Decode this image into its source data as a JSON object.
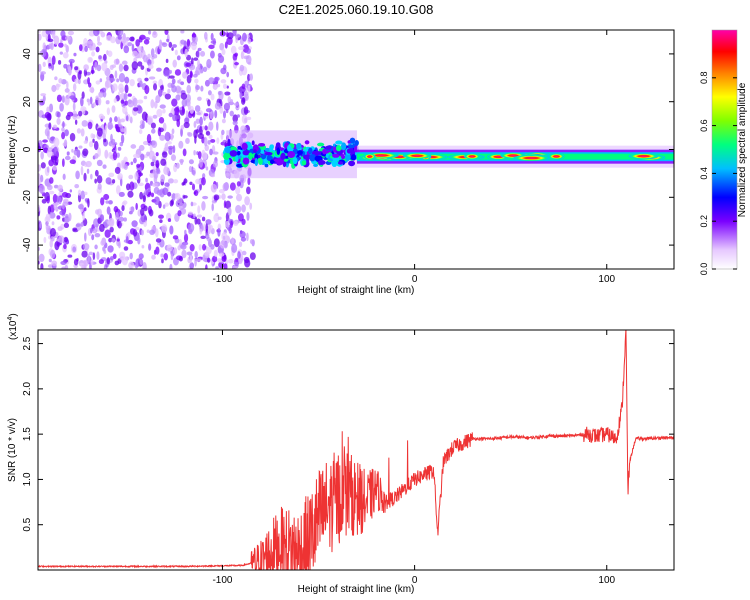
{
  "title": "C2E1.2025.060.19.10.G08",
  "chart_data": [
    {
      "type": "heatmap",
      "xlabel": "Height of straight line (km)",
      "ylabel": "Frequency (Hz)",
      "xlim": [
        -196,
        135
      ],
      "ylim": [
        -50,
        50
      ],
      "x_ticks": [
        -100,
        0,
        100
      ],
      "y_ticks": [
        -40,
        -20,
        0,
        20,
        40
      ],
      "colorbar": {
        "label": "Normalized spectral amplitude",
        "range": [
          0,
          1
        ],
        "ticks": [
          "0.0",
          "0.2",
          "0.4",
          "0.6",
          "0.8"
        ],
        "colormap": [
          "#ffffff",
          "#e6c8ff",
          "#7a00ff",
          "#0000ff",
          "#00bfff",
          "#00ff80",
          "#80ff00",
          "#ffff00",
          "#ff8000",
          "#ff0000",
          "#ff00aa"
        ]
      },
      "regions": [
        {
          "name": "noise",
          "x": [
            -196,
            -85
          ],
          "freq": [
            -50,
            50
          ],
          "amplitude": 0.15
        },
        {
          "name": "turbulent-onset",
          "x": [
            -98,
            -30
          ],
          "freq_center": -2,
          "freq_width": 10,
          "amplitude": 0.35
        },
        {
          "name": "stable-tone",
          "x": [
            -30,
            135
          ],
          "freq_center": -3,
          "freq_width": 5,
          "amplitude": 0.95
        }
      ]
    },
    {
      "type": "line",
      "xlabel": "Height of straight line (km)",
      "ylabel": "SNR (10 * v/v)",
      "scale_label": "(x10",
      "scale_exp": "4",
      "xlim": [
        -196,
        135
      ],
      "ylim": [
        0,
        2.65
      ],
      "x_ticks": [
        -100,
        0,
        100
      ],
      "y_ticks": [
        "0.5",
        "1.0",
        "1.5",
        "2.0",
        "2.5"
      ],
      "color": "#ee3333",
      "series": [
        {
          "x": [
            -196,
            -160,
            -120,
            -90,
            -80,
            -75,
            -70,
            -65,
            -60,
            -55,
            -50,
            -45,
            -40,
            -35,
            -30,
            -25,
            -20,
            -18,
            -15,
            -10,
            -5,
            0,
            5,
            10,
            12,
            15,
            20,
            25,
            30,
            40,
            50,
            60,
            70,
            80,
            90,
            95,
            100,
            105,
            108,
            110,
            111,
            112,
            115,
            120,
            130,
            135
          ],
          "y": [
            0.04,
            0.04,
            0.04,
            0.05,
            0.1,
            0.2,
            0.28,
            0.22,
            0.18,
            0.3,
            0.55,
            0.7,
            0.8,
            0.85,
            0.8,
            0.75,
            0.9,
            0.85,
            0.75,
            0.8,
            0.9,
            1.0,
            1.05,
            1.1,
            0.4,
            1.2,
            1.35,
            1.4,
            1.45,
            1.45,
            1.47,
            1.46,
            1.48,
            1.48,
            1.5,
            1.48,
            1.5,
            1.45,
            1.8,
            2.65,
            0.85,
            1.2,
            1.45,
            1.45,
            1.46,
            1.46
          ]
        }
      ]
    }
  ]
}
